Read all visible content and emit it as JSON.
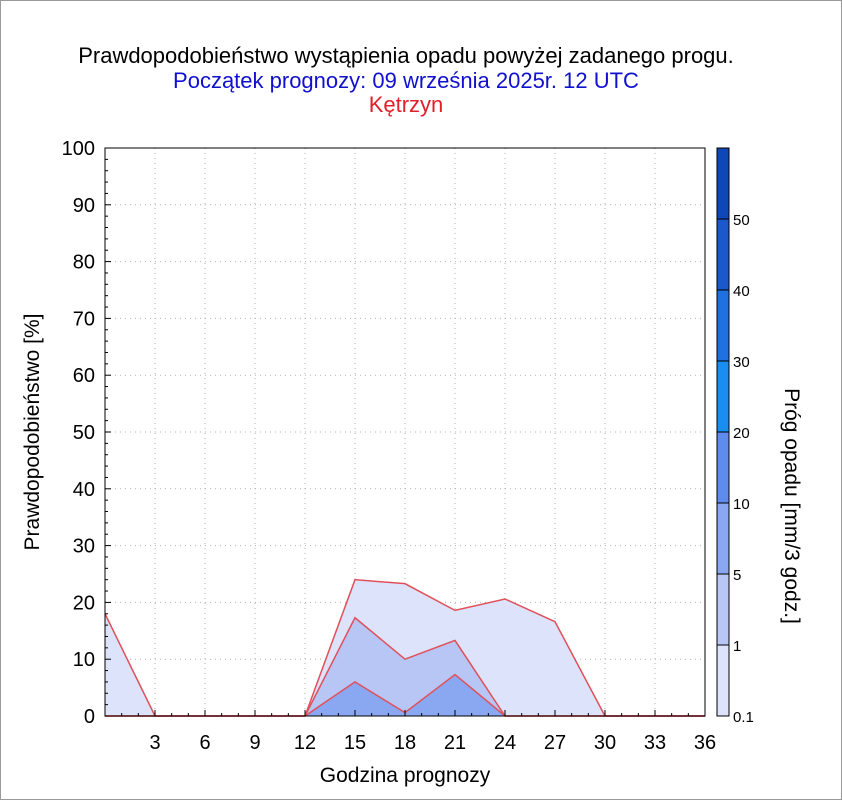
{
  "title": "Prawdopodobieństwo wystąpienia opadu powyżej zadanego progu.",
  "subtitle": "Początek prognozy: 09 września 2025r. 12 UTC",
  "location": "Kętrzyn",
  "colors": {
    "title": "#000000",
    "subtitle": "#1010d0",
    "location": "#e0202a",
    "outline": "#e0505a",
    "grid": "#b0b0b0"
  },
  "chart_data": {
    "type": "area",
    "xlabel": "Godzina prognozy",
    "ylabel": "Prawdopodobieństwo [%]",
    "xlim": [
      0,
      36
    ],
    "ylim": [
      0,
      100
    ],
    "x_ticks": [
      3,
      6,
      9,
      12,
      15,
      18,
      21,
      24,
      27,
      30,
      33,
      36
    ],
    "y_ticks": [
      0,
      10,
      20,
      30,
      40,
      50,
      60,
      70,
      80,
      90,
      100
    ],
    "grid": true,
    "series": [
      {
        "threshold": 0.1,
        "color": "#dde3fb",
        "x": [
          0,
          3,
          6,
          9,
          12,
          15,
          18,
          21,
          24,
          27,
          30,
          33,
          36
        ],
        "y": [
          18,
          0,
          0,
          0,
          0,
          24,
          23.3,
          18.6,
          20.6,
          16.6,
          0,
          0,
          0
        ]
      },
      {
        "threshold": 1,
        "color": "#b8c6f6",
        "x": [
          0,
          3,
          6,
          9,
          12,
          15,
          18,
          21,
          24,
          27,
          30,
          33,
          36
        ],
        "y": [
          0,
          0,
          0,
          0,
          0,
          17.3,
          10,
          13.3,
          0,
          0,
          0,
          0,
          0
        ]
      },
      {
        "threshold": 5,
        "color": "#8aa8f2",
        "x": [
          0,
          3,
          6,
          9,
          12,
          15,
          18,
          21,
          24,
          27,
          30,
          33,
          36
        ],
        "y": [
          0,
          0,
          0,
          0,
          0,
          6,
          0.6,
          7.3,
          0,
          0,
          0,
          0,
          0
        ]
      }
    ],
    "colorbar": {
      "label": "Próg opadu [mm/3 godz.]",
      "labels": [
        "0.1",
        "1",
        "5",
        "10",
        "20",
        "30",
        "40",
        "50"
      ],
      "colors": [
        "#dde3fb",
        "#b8c6f6",
        "#8aa8f2",
        "#5e8cec",
        "#1a8ef0",
        "#1f70e0",
        "#1a58cc",
        "#0e48b8"
      ]
    }
  }
}
